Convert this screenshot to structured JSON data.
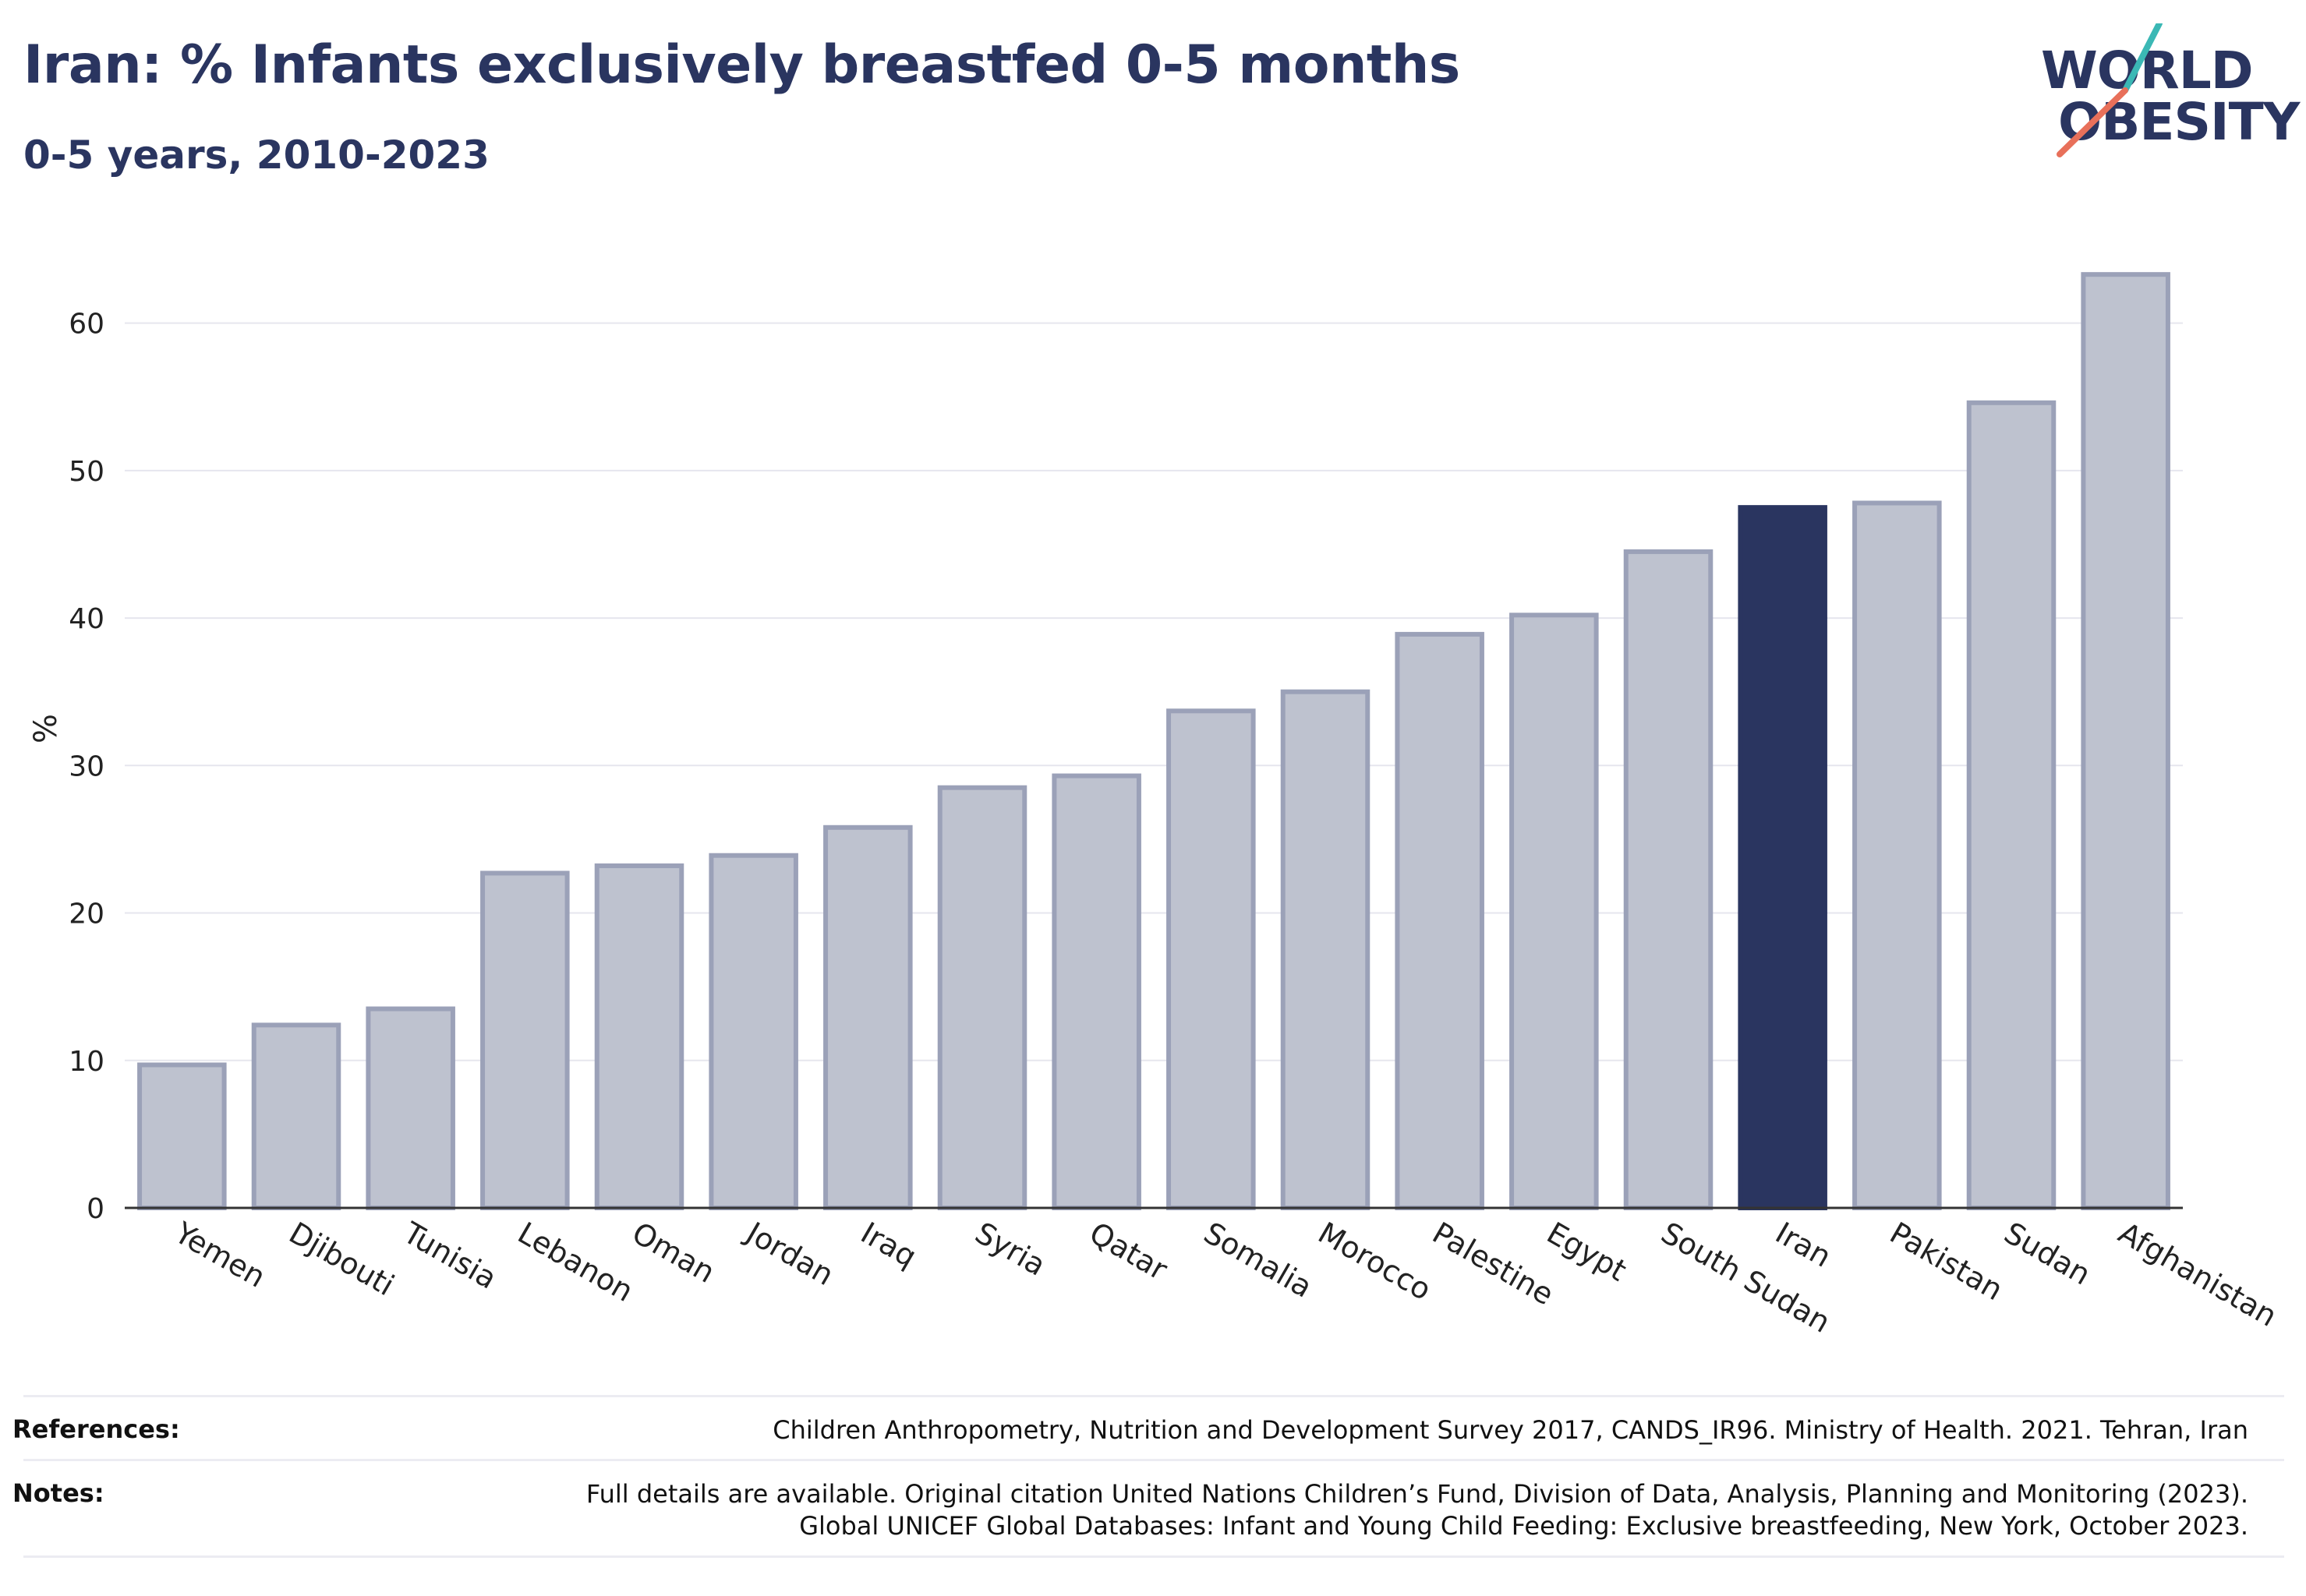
{
  "title": "Iran: % Infants exclusively breastfed 0-5 months",
  "subtitle": "0-5 years, 2010-2023",
  "logo": {
    "line1": "WORLD",
    "line2": "OBESITY"
  },
  "colors": {
    "highlight": "#2a3560",
    "bar_fill": "#bec2cf",
    "bar_stroke": "#9ba1b8",
    "grid": "#e6e6ee",
    "axis": "#333333",
    "logo_teal": "#3bb8b5",
    "logo_coral": "#e8705a"
  },
  "chart_data": {
    "type": "bar",
    "title": "Iran: % Infants exclusively breastfed 0-5 months",
    "subtitle": "0-5 years, 2010-2023",
    "ylabel": "%",
    "ylim": [
      0,
      65
    ],
    "yticks": [
      0,
      10,
      20,
      30,
      40,
      50,
      60
    ],
    "grid": true,
    "highlight": "Iran",
    "categories": [
      "Yemen",
      "Djibouti",
      "Tunisia",
      "Lebanon",
      "Oman",
      "Jordan",
      "Iraq",
      "Syria",
      "Qatar",
      "Somalia",
      "Morocco",
      "Palestine",
      "Egypt",
      "South Sudan",
      "Iran",
      "Pakistan",
      "Sudan",
      "Afghanistan"
    ],
    "values": [
      9.7,
      12.4,
      13.5,
      22.7,
      23.2,
      23.9,
      25.8,
      28.5,
      29.3,
      33.7,
      35.0,
      38.9,
      40.2,
      44.5,
      47.5,
      47.8,
      54.6,
      63.3
    ]
  },
  "footer": {
    "references_label": "References:",
    "references_text": "Children Anthropometry, Nutrition and Development Survey 2017, CANDS_IR96. Ministry of Health. 2021. Tehran, Iran",
    "notes_label": "Notes:",
    "notes_line1": "Full details are available. Original citation United Nations Children’s Fund, Division of Data, Analysis, Planning and Monitoring (2023).",
    "notes_line2": "Global UNICEF Global Databases: Infant and Young Child Feeding: Exclusive breastfeeding, New York, October 2023."
  }
}
